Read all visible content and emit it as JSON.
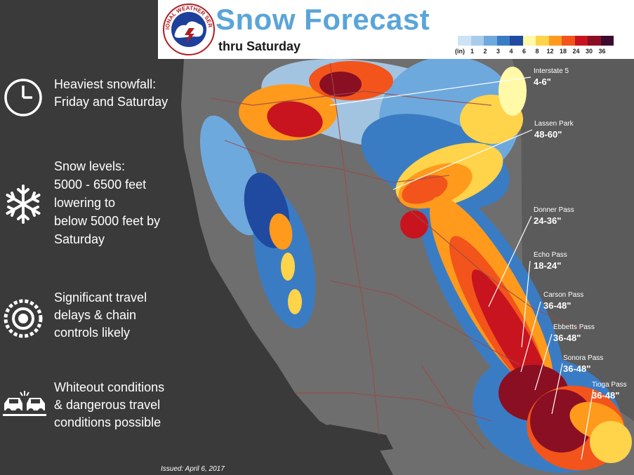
{
  "header": {
    "title": "Snow Forecast",
    "subtitle": "thru Saturday",
    "logo_text": "NATIONAL WEATHER SERVICE"
  },
  "legend": {
    "unit": "(in)",
    "labels": [
      "1",
      "2",
      "3",
      "4",
      "6",
      "8",
      "12",
      "18",
      "24",
      "30",
      "36"
    ],
    "colors": [
      "#cde3f4",
      "#a8cdec",
      "#6ea9de",
      "#3a7cc4",
      "#1f4aa0",
      "#fff9a8",
      "#ffd34a",
      "#ff9a1c",
      "#f2541b",
      "#c8141e",
      "#8a0f22",
      "#3d0b30"
    ]
  },
  "info_panel": [
    {
      "icon": "clock-icon",
      "lines": [
        "Heaviest snowfall:",
        "Friday and Saturday"
      ]
    },
    {
      "icon": "snowflake-icon",
      "lines": [
        "Snow levels:",
        "5000 - 6500 feet",
        "lowering to",
        "below 5000 feet by",
        "Saturday"
      ]
    },
    {
      "icon": "tire-chain-icon",
      "lines": [
        "Significant travel",
        "delays & chain",
        "controls likely"
      ]
    },
    {
      "icon": "car-crash-icon",
      "lines": [
        "Whiteout conditions",
        "& dangerous travel",
        "conditions possible"
      ]
    }
  ],
  "passes": [
    {
      "name": "Interstate 5",
      "amount": "4-6\""
    },
    {
      "name": "Lassen Park",
      "amount": "48-60\""
    },
    {
      "name": "Donner Pass",
      "amount": "24-36\""
    },
    {
      "name": "Echo Pass",
      "amount": "18-24\""
    },
    {
      "name": "Carson Pass",
      "amount": "36-48\""
    },
    {
      "name": "Ebbetts Pass",
      "amount": "36-48\""
    },
    {
      "name": "Sonora Pass",
      "amount": "36-48\""
    },
    {
      "name": "Tioga Pass",
      "amount": "36-48\""
    }
  ],
  "footer": {
    "issued": "Issued: April 6, 2017"
  },
  "colors": {
    "ocean": "#3a3a3a",
    "land": "#6e6e6e",
    "nevada": "#5b5b5b",
    "title_blue": "#5aa5d8",
    "road": "#9a4a4a"
  }
}
